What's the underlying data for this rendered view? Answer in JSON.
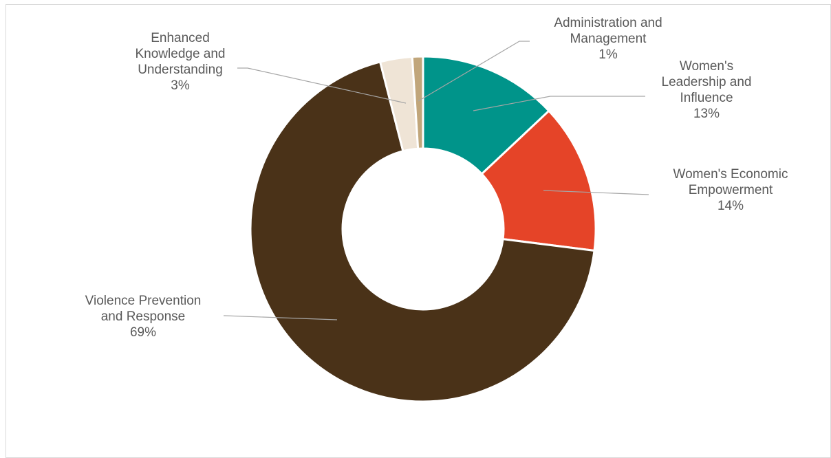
{
  "chart_data": {
    "type": "pie",
    "variant": "doughnut",
    "title": "",
    "legend": "none",
    "slices": [
      {
        "name": "Women's Leadership and Influence",
        "value": 13,
        "percent_label": "13%",
        "color": "#00948A"
      },
      {
        "name": "Women's Economic Empowerment",
        "value": 14,
        "percent_label": "14%",
        "color": "#E54428"
      },
      {
        "name": "Violence Prevention and Response",
        "value": 69,
        "percent_label": "69%",
        "color": "#4A3218"
      },
      {
        "name": "Enhanced Knowledge and Understanding",
        "value": 3,
        "percent_label": "3%",
        "color": "#EFE4D6"
      },
      {
        "name": "Administration and Management",
        "value": 1,
        "percent_label": "1%",
        "color": "#C1A67B"
      }
    ],
    "labels": [
      {
        "lines": [
          "Women's",
          "Leadership and",
          "Influence",
          "13%"
        ]
      },
      {
        "lines": [
          "Women's Economic",
          "Empowerment",
          "14%"
        ]
      },
      {
        "lines": [
          "Violence Prevention",
          "and Response",
          "69%"
        ]
      },
      {
        "lines": [
          "Enhanced",
          "Knowledge and",
          "Understanding",
          "3%"
        ]
      },
      {
        "lines": [
          "Administration and",
          "Management",
          "1%"
        ]
      }
    ]
  }
}
